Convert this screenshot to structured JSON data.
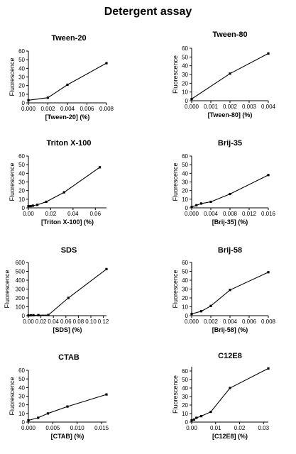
{
  "title": "Detergent assay",
  "chart_data": [
    {
      "type": "line",
      "title": "Tween-20",
      "xlabel": "[Tween-20] (%)",
      "ylabel": "Fluorescence",
      "xlim": [
        0,
        0.008
      ],
      "ylim": [
        0,
        60
      ],
      "xticks": [
        0,
        0.002,
        0.004,
        0.006,
        0.008
      ],
      "xtick_labels": [
        "0.000",
        "0.002",
        "0.004",
        "0.006",
        "0.008"
      ],
      "yticks": [
        0,
        10,
        20,
        30,
        40,
        50,
        60
      ],
      "ytick_labels": [
        "0",
        "10",
        "20",
        "30",
        "40",
        "50",
        "60"
      ],
      "series": [
        {
          "x": [
            0,
            0.002,
            0.004,
            0.008
          ],
          "y": [
            3,
            6,
            21,
            46
          ]
        }
      ]
    },
    {
      "type": "line",
      "title": "Tween-80",
      "xlabel": "[Tween-80] (%)",
      "ylabel": "Fluorescence",
      "xlim": [
        0,
        0.004
      ],
      "ylim": [
        0,
        60
      ],
      "xticks": [
        0,
        0.001,
        0.002,
        0.003,
        0.004
      ],
      "xtick_labels": [
        "0.000",
        "0.001",
        "0.002",
        "0.003",
        "0.004"
      ],
      "yticks": [
        0,
        10,
        20,
        30,
        40,
        50,
        60
      ],
      "ytick_labels": [
        "0",
        "10",
        "20",
        "30",
        "40",
        "50",
        "60"
      ],
      "series": [
        {
          "x": [
            0,
            0.002,
            0.004
          ],
          "y": [
            2,
            31,
            54
          ]
        }
      ]
    },
    {
      "type": "line",
      "title": "Triton X-100",
      "xlabel": "[Triton X-100] (%)",
      "ylabel": "Fluorescence",
      "xlim": [
        0,
        0.07
      ],
      "ylim": [
        0,
        60
      ],
      "xticks": [
        0,
        0.02,
        0.04,
        0.06
      ],
      "xtick_labels": [
        "0.00",
        "0.02",
        "0.04",
        "0.06"
      ],
      "yticks": [
        0,
        10,
        20,
        30,
        40,
        50,
        60
      ],
      "ytick_labels": [
        "0",
        "10",
        "20",
        "30",
        "40",
        "50",
        "60"
      ],
      "series": [
        {
          "x": [
            0,
            0.002,
            0.004,
            0.008,
            0.016,
            0.032,
            0.064
          ],
          "y": [
            2,
            2,
            2.5,
            3.5,
            7,
            18,
            47
          ]
        }
      ]
    },
    {
      "type": "line",
      "title": "Brij-35",
      "xlabel": "[Brij-35] (%)",
      "ylabel": "Fluorescence",
      "xlim": [
        0,
        0.016
      ],
      "ylim": [
        0,
        60
      ],
      "xticks": [
        0,
        0.004,
        0.008,
        0.012,
        0.016
      ],
      "xtick_labels": [
        "0.000",
        "0.004",
        "0.008",
        "0.012",
        "0.016"
      ],
      "yticks": [
        0,
        10,
        20,
        30,
        40,
        50,
        60
      ],
      "ytick_labels": [
        "0",
        "10",
        "20",
        "30",
        "40",
        "50",
        "60"
      ],
      "series": [
        {
          "x": [
            0,
            0.001,
            0.002,
            0.004,
            0.008,
            0.016
          ],
          "y": [
            1,
            3,
            5,
            7,
            16,
            38
          ]
        }
      ]
    },
    {
      "type": "line",
      "title": "SDS",
      "xlabel": "[SDS] (%)",
      "ylabel": "Fluorescence",
      "xlim": [
        0,
        0.125
      ],
      "ylim": [
        0,
        600
      ],
      "xticks": [
        0,
        0.02,
        0.04,
        0.06,
        0.08,
        0.1,
        0.12
      ],
      "xtick_labels": [
        "0.00",
        "0.02",
        "0.04",
        "0.06",
        "0.08",
        "0.10",
        "0.12"
      ],
      "yticks": [
        0,
        100,
        200,
        300,
        400,
        500,
        600
      ],
      "ytick_labels": [
        "0",
        "100",
        "200",
        "300",
        "400",
        "500",
        "600"
      ],
      "series": [
        {
          "x": [
            0,
            0.004,
            0.008,
            0.016,
            0.032,
            0.064,
            0.125
          ],
          "y": [
            3,
            4,
            5,
            6,
            8,
            200,
            525
          ]
        }
      ]
    },
    {
      "type": "line",
      "title": "Brij-58",
      "xlabel": "[Brij-58] (%)",
      "ylabel": "Fluorescence",
      "xlim": [
        0,
        0.008
      ],
      "ylim": [
        0,
        60
      ],
      "xticks": [
        0,
        0.002,
        0.004,
        0.006,
        0.008
      ],
      "xtick_labels": [
        "0.000",
        "0.002",
        "0.004",
        "0.006",
        "0.008"
      ],
      "yticks": [
        0,
        10,
        20,
        30,
        40,
        50,
        60
      ],
      "ytick_labels": [
        "0",
        "10",
        "20",
        "30",
        "40",
        "50",
        "60"
      ],
      "series": [
        {
          "x": [
            0,
            0.001,
            0.002,
            0.004,
            0.008
          ],
          "y": [
            2,
            5,
            11,
            29,
            49
          ]
        }
      ]
    },
    {
      "type": "line",
      "title": "CTAB",
      "xlabel": "[CTAB] (%)",
      "ylabel": "Fluorescence",
      "xlim": [
        0,
        0.016
      ],
      "ylim": [
        0,
        60
      ],
      "xticks": [
        0,
        0.005,
        0.01,
        0.015
      ],
      "xtick_labels": [
        "0.000",
        "0.005",
        "0.010",
        "0.015"
      ],
      "yticks": [
        0,
        10,
        20,
        30,
        40,
        50,
        60
      ],
      "ytick_labels": [
        "0",
        "10",
        "20",
        "30",
        "40",
        "50",
        "60"
      ],
      "series": [
        {
          "x": [
            0,
            0.002,
            0.004,
            0.008,
            0.016
          ],
          "y": [
            2,
            5,
            10,
            18,
            32
          ]
        }
      ]
    },
    {
      "type": "line",
      "title": "C12E8",
      "xlabel": "[C12E8] (%)",
      "ylabel": "Fluorescence",
      "xlim": [
        0,
        0.032
      ],
      "ylim": [
        0,
        65
      ],
      "xticks": [
        0,
        0.01,
        0.02,
        0.03
      ],
      "xtick_labels": [
        "0.00",
        "0.01",
        "0.02",
        "0.03"
      ],
      "yticks": [
        0,
        10,
        20,
        30,
        40,
        50,
        60
      ],
      "ytick_labels": [
        "0",
        "10",
        "20",
        "30",
        "40",
        "50",
        "60"
      ],
      "series": [
        {
          "x": [
            0,
            0.001,
            0.002,
            0.004,
            0.008,
            0.016,
            0.032
          ],
          "y": [
            2,
            3,
            5,
            7,
            12,
            40,
            63
          ]
        }
      ]
    }
  ]
}
